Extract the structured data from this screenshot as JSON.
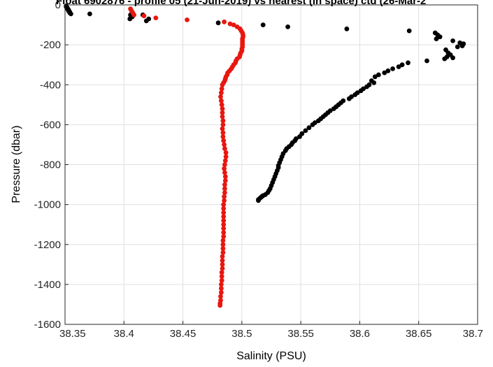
{
  "chart_data": {
    "type": "scatter",
    "title": "Float 6902876 - profile 05 (21-Jun-2019) vs nearest (in space) ctd (26-Mar-2",
    "xlabel": "Salinity (PSU)",
    "ylabel": "Pressure (dbar)",
    "xlim": [
      38.35,
      38.7
    ],
    "ylim": [
      -1600,
      0
    ],
    "xticks": [
      "38.35",
      "38.4",
      "38.45",
      "38.5",
      "38.55",
      "38.6",
      "38.65",
      "38.7"
    ],
    "yticks": [
      "-1600",
      "-1400",
      "-1200",
      "-1000",
      "-800",
      "-600",
      "-400",
      "-200",
      "0"
    ],
    "grid": true,
    "legend": "none",
    "series": [
      {
        "color": "#000000",
        "points": [
          [
            38.351,
            -5
          ],
          [
            38.351,
            -10
          ],
          [
            38.352,
            -15
          ],
          [
            38.352,
            -20
          ],
          [
            38.353,
            -25
          ],
          [
            38.353,
            -30
          ],
          [
            38.354,
            -35
          ],
          [
            38.354,
            -40
          ],
          [
            38.355,
            -45
          ],
          [
            38.371,
            -45
          ],
          [
            38.4055,
            -50
          ],
          [
            38.407,
            -60
          ],
          [
            38.405,
            -70
          ],
          [
            38.421,
            -70
          ],
          [
            38.419,
            -80
          ],
          [
            38.416,
            -50
          ],
          [
            38.48,
            -90
          ],
          [
            38.518,
            -100
          ],
          [
            38.539,
            -110
          ],
          [
            38.589,
            -120
          ],
          [
            38.642,
            -130
          ],
          [
            38.664,
            -140
          ],
          [
            38.666,
            -150
          ],
          [
            38.668,
            -160
          ],
          [
            38.665,
            -170
          ],
          [
            38.679,
            -180
          ],
          [
            38.685,
            -190
          ],
          [
            38.688,
            -195
          ],
          [
            38.687,
            -205
          ],
          [
            38.683,
            -210
          ],
          [
            38.673,
            -225
          ],
          [
            38.675,
            -240
          ],
          [
            38.677,
            -250
          ],
          [
            38.674,
            -260
          ],
          [
            38.679,
            -265
          ],
          [
            38.672,
            -270
          ],
          [
            38.657,
            -280
          ],
          [
            38.641,
            -290
          ],
          [
            38.636,
            -300
          ],
          [
            38.633,
            -310
          ],
          [
            38.628,
            -320
          ],
          [
            38.624,
            -330
          ],
          [
            38.621,
            -340
          ],
          [
            38.616,
            -350
          ],
          [
            38.613,
            -360
          ],
          [
            38.61,
            -380
          ],
          [
            38.612,
            -390
          ],
          [
            38.608,
            -400
          ],
          [
            38.606,
            -410
          ],
          [
            38.603,
            -420
          ],
          [
            38.601,
            -430
          ],
          [
            38.598,
            -440
          ],
          [
            38.596,
            -450
          ],
          [
            38.593,
            -460
          ],
          [
            38.591,
            -470
          ],
          [
            38.586,
            -480
          ],
          [
            38.584,
            -490
          ],
          [
            38.582,
            -500
          ],
          [
            38.58,
            -510
          ],
          [
            38.578,
            -520
          ],
          [
            38.575,
            -530
          ],
          [
            38.573,
            -540
          ],
          [
            38.571,
            -550
          ],
          [
            38.569,
            -560
          ],
          [
            38.567,
            -570
          ],
          [
            38.565,
            -580
          ],
          [
            38.562,
            -590
          ],
          [
            38.56,
            -600
          ],
          [
            38.557,
            -615
          ],
          [
            38.554,
            -630
          ],
          [
            38.551,
            -645
          ],
          [
            38.549,
            -660
          ],
          [
            38.546,
            -670
          ],
          [
            38.545,
            -680
          ],
          [
            38.543,
            -690
          ],
          [
            38.542,
            -700
          ],
          [
            38.54,
            -710
          ],
          [
            38.538,
            -720
          ],
          [
            38.537,
            -730
          ],
          [
            38.535,
            -745
          ],
          [
            38.534,
            -760
          ],
          [
            38.533,
            -775
          ],
          [
            38.532,
            -790
          ],
          [
            38.531,
            -805
          ],
          [
            38.531,
            -815
          ],
          [
            38.53,
            -830
          ],
          [
            38.529,
            -845
          ],
          [
            38.528,
            -860
          ],
          [
            38.527,
            -875
          ],
          [
            38.526,
            -890
          ],
          [
            38.525,
            -905
          ],
          [
            38.524,
            -920
          ],
          [
            38.523,
            -930
          ],
          [
            38.522,
            -940
          ],
          [
            38.52,
            -950
          ],
          [
            38.518,
            -955
          ],
          [
            38.517,
            -960
          ],
          [
            38.516,
            -965
          ],
          [
            38.515,
            -970
          ],
          [
            38.514,
            -975
          ],
          [
            38.514,
            -980
          ]
        ]
      },
      {
        "color": "#e8170f",
        "points": [
          [
            38.4055,
            -20
          ],
          [
            38.4065,
            -30
          ],
          [
            38.4075,
            -40
          ],
          [
            38.4085,
            -50
          ],
          [
            38.417,
            -55
          ],
          [
            38.427,
            -65
          ],
          [
            38.4535,
            -75
          ],
          [
            38.485,
            -85
          ],
          [
            38.49,
            -95
          ],
          [
            38.493,
            -100
          ],
          [
            38.496,
            -110
          ],
          [
            38.4985,
            -120
          ],
          [
            38.4995,
            -130
          ],
          [
            38.5005,
            -140
          ],
          [
            38.501,
            -150
          ],
          [
            38.501,
            -160
          ],
          [
            38.5005,
            -170
          ],
          [
            38.5005,
            -180
          ],
          [
            38.5005,
            -190
          ],
          [
            38.5005,
            -200
          ],
          [
            38.5005,
            -210
          ],
          [
            38.5,
            -220
          ],
          [
            38.5,
            -230
          ],
          [
            38.499,
            -240
          ],
          [
            38.4985,
            -250
          ],
          [
            38.498,
            -260
          ],
          [
            38.496,
            -270
          ],
          [
            38.495,
            -280
          ],
          [
            38.4945,
            -290
          ],
          [
            38.493,
            -300
          ],
          [
            38.492,
            -310
          ],
          [
            38.491,
            -320
          ],
          [
            38.4895,
            -330
          ],
          [
            38.488,
            -340
          ],
          [
            38.4875,
            -350
          ],
          [
            38.4865,
            -360
          ],
          [
            38.486,
            -370
          ],
          [
            38.4855,
            -380
          ],
          [
            38.4845,
            -390
          ],
          [
            38.4835,
            -400
          ],
          [
            38.483,
            -420
          ],
          [
            38.4825,
            -440
          ],
          [
            38.482,
            -460
          ],
          [
            38.4825,
            -480
          ],
          [
            38.483,
            -500
          ],
          [
            38.4835,
            -520
          ],
          [
            38.4835,
            -540
          ],
          [
            38.4835,
            -560
          ],
          [
            38.484,
            -580
          ],
          [
            38.484,
            -600
          ],
          [
            38.4835,
            -620
          ],
          [
            38.484,
            -640
          ],
          [
            38.484,
            -660
          ],
          [
            38.4845,
            -680
          ],
          [
            38.485,
            -700
          ],
          [
            38.4855,
            -720
          ],
          [
            38.4865,
            -740
          ],
          [
            38.4865,
            -760
          ],
          [
            38.486,
            -780
          ],
          [
            38.4855,
            -800
          ],
          [
            38.485,
            -820
          ],
          [
            38.4855,
            -840
          ],
          [
            38.486,
            -860
          ],
          [
            38.486,
            -880
          ],
          [
            38.4855,
            -900
          ],
          [
            38.4855,
            -920
          ],
          [
            38.4855,
            -940
          ],
          [
            38.485,
            -960
          ],
          [
            38.485,
            -980
          ],
          [
            38.4845,
            -1000
          ],
          [
            38.4845,
            -1020
          ],
          [
            38.4845,
            -1040
          ],
          [
            38.4845,
            -1060
          ],
          [
            38.4845,
            -1080
          ],
          [
            38.4845,
            -1100
          ],
          [
            38.4845,
            -1120
          ],
          [
            38.4845,
            -1140
          ],
          [
            38.4845,
            -1160
          ],
          [
            38.484,
            -1180
          ],
          [
            38.484,
            -1200
          ],
          [
            38.484,
            -1220
          ],
          [
            38.484,
            -1240
          ],
          [
            38.4835,
            -1260
          ],
          [
            38.4835,
            -1280
          ],
          [
            38.4835,
            -1300
          ],
          [
            38.4835,
            -1320
          ],
          [
            38.483,
            -1340
          ],
          [
            38.483,
            -1360
          ],
          [
            38.483,
            -1380
          ],
          [
            38.4825,
            -1400
          ],
          [
            38.4825,
            -1420
          ],
          [
            38.4825,
            -1440
          ],
          [
            38.482,
            -1460
          ],
          [
            38.482,
            -1480
          ],
          [
            38.4815,
            -1495
          ],
          [
            38.4815,
            -1505
          ]
        ]
      }
    ]
  }
}
